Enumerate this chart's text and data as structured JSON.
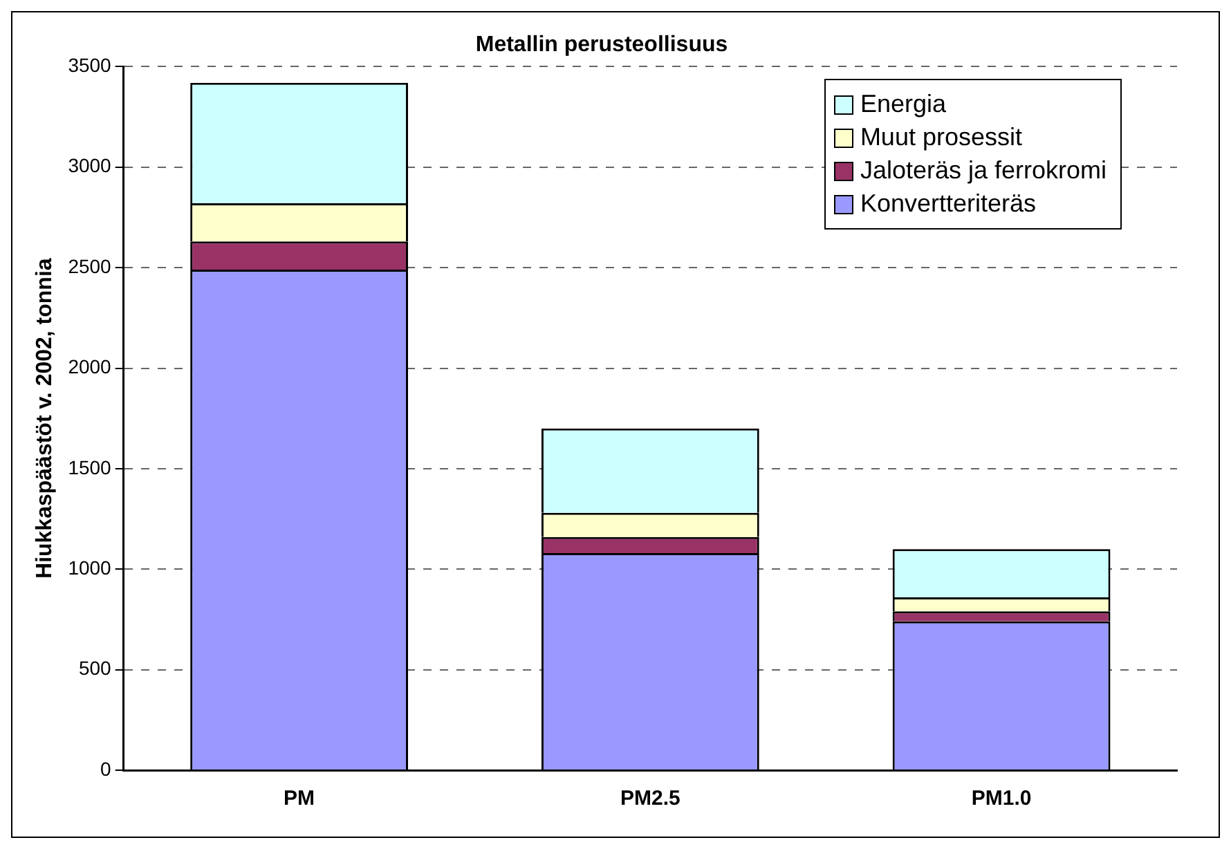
{
  "chart_data": {
    "type": "bar",
    "title": "Metallin perusteollisuus",
    "ylabel": "Hiukkaspäästöt v. 2002, tonnia",
    "categories": [
      "PM",
      "PM2.5",
      "PM1.0"
    ],
    "stacked": true,
    "ylim": [
      0,
      3500
    ],
    "yticks": [
      0,
      500,
      1000,
      1500,
      2000,
      2500,
      3000,
      3500
    ],
    "grid": "y",
    "legend": "top right",
    "series": [
      {
        "name": "Konvertteriteräs",
        "color": "#9999ff",
        "values": [
          2490,
          1080,
          740
        ]
      },
      {
        "name": "Jaloteräs ja ferrokromi",
        "color": "#993366",
        "values": [
          140,
          80,
          50
        ]
      },
      {
        "name": "Muut prosessit",
        "color": "#ffffcc",
        "values": [
          190,
          120,
          70
        ]
      },
      {
        "name": "Energia",
        "color": "#ccffff",
        "values": [
          600,
          420,
          240
        ]
      }
    ]
  }
}
